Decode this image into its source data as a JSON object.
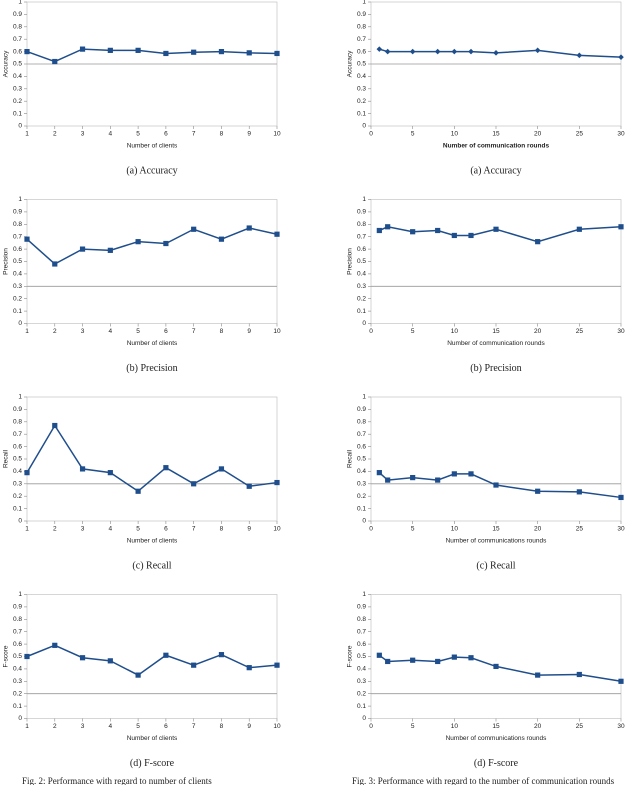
{
  "chart_data": [
    {
      "type": "line",
      "caption": "(a) Accuracy",
      "ylabel": "Accuracy",
      "xlabel": "Number of clients",
      "xlabel_bold": false,
      "marker": "square",
      "color": "#1f4e8c",
      "hline": 0.5,
      "x": [
        1,
        2,
        3,
        4,
        5,
        6,
        7,
        8,
        9,
        10
      ],
      "values": [
        0.6,
        0.52,
        0.62,
        0.61,
        0.61,
        0.585,
        0.595,
        0.6,
        0.59,
        0.585
      ],
      "xlim": [
        1,
        10
      ],
      "xticks": [
        1,
        2,
        3,
        4,
        5,
        6,
        7,
        8,
        9,
        10
      ],
      "ylim": [
        0,
        1
      ],
      "yticks": [
        0,
        0.1,
        0.2,
        0.3,
        0.4,
        0.5,
        0.6,
        0.7,
        0.8,
        0.9,
        1
      ]
    },
    {
      "type": "line",
      "caption": "(b) Precision",
      "ylabel": "Precision",
      "xlabel": "Number of clients",
      "xlabel_bold": false,
      "marker": "square",
      "color": "#1f4e8c",
      "hline": 0.3,
      "x": [
        1,
        2,
        3,
        4,
        5,
        6,
        7,
        8,
        9,
        10
      ],
      "values": [
        0.68,
        0.48,
        0.6,
        0.59,
        0.66,
        0.645,
        0.76,
        0.68,
        0.77,
        0.72
      ],
      "xlim": [
        1,
        10
      ],
      "xticks": [
        1,
        2,
        3,
        4,
        5,
        6,
        7,
        8,
        9,
        10
      ],
      "ylim": [
        0,
        1
      ],
      "yticks": [
        0,
        0.1,
        0.2,
        0.3,
        0.4,
        0.5,
        0.6,
        0.7,
        0.8,
        0.9,
        1
      ]
    },
    {
      "type": "line",
      "caption": "(c) Recall",
      "ylabel": "Recall",
      "xlabel": "Number of clients",
      "xlabel_bold": false,
      "marker": "square",
      "color": "#1f4e8c",
      "hline": 0.3,
      "x": [
        1,
        2,
        3,
        4,
        5,
        6,
        7,
        8,
        9,
        10
      ],
      "values": [
        0.39,
        0.77,
        0.42,
        0.39,
        0.24,
        0.43,
        0.3,
        0.42,
        0.28,
        0.31
      ],
      "xlim": [
        1,
        10
      ],
      "xticks": [
        1,
        2,
        3,
        4,
        5,
        6,
        7,
        8,
        9,
        10
      ],
      "ylim": [
        0,
        1
      ],
      "yticks": [
        0,
        0.1,
        0.2,
        0.3,
        0.4,
        0.5,
        0.6,
        0.7,
        0.8,
        0.9,
        1
      ]
    },
    {
      "type": "line",
      "caption": "(d) F-score",
      "ylabel": "F-score",
      "xlabel": "Number of clients",
      "xlabel_bold": false,
      "marker": "square",
      "color": "#1f4e8c",
      "hline": 0.2,
      "x": [
        1,
        2,
        3,
        4,
        5,
        6,
        7,
        8,
        9,
        10
      ],
      "values": [
        0.5,
        0.59,
        0.49,
        0.465,
        0.35,
        0.51,
        0.43,
        0.515,
        0.41,
        0.43
      ],
      "xlim": [
        1,
        10
      ],
      "xticks": [
        1,
        2,
        3,
        4,
        5,
        6,
        7,
        8,
        9,
        10
      ],
      "ylim": [
        0,
        1
      ],
      "yticks": [
        0,
        0.1,
        0.2,
        0.3,
        0.4,
        0.5,
        0.6,
        0.7,
        0.8,
        0.9,
        1
      ]
    },
    {
      "type": "line",
      "caption": "(a) Accuracy",
      "ylabel": "Accuracy",
      "xlabel": "Number of communication rounds",
      "xlabel_bold": true,
      "marker": "diamond",
      "color": "#1f4e8c",
      "hline": 0.5,
      "x": [
        1,
        2,
        5,
        8,
        10,
        12,
        15,
        20,
        25,
        30
      ],
      "values": [
        0.62,
        0.6,
        0.6,
        0.6,
        0.6,
        0.6,
        0.59,
        0.61,
        0.57,
        0.555
      ],
      "xlim": [
        0,
        30
      ],
      "xticks": [
        0,
        5,
        10,
        15,
        20,
        25,
        30
      ],
      "ylim": [
        0,
        1
      ],
      "yticks": [
        0,
        0.1,
        0.2,
        0.3,
        0.4,
        0.5,
        0.6,
        0.7,
        0.8,
        0.9,
        1
      ]
    },
    {
      "type": "line",
      "caption": "(b) Precision",
      "ylabel": "Precision",
      "xlabel": "Number of communication rounds",
      "xlabel_bold": false,
      "marker": "square",
      "color": "#1f4e8c",
      "hline": 0.3,
      "x": [
        1,
        2,
        5,
        8,
        10,
        12,
        15,
        20,
        25,
        30
      ],
      "values": [
        0.75,
        0.78,
        0.74,
        0.75,
        0.71,
        0.71,
        0.76,
        0.66,
        0.76,
        0.78
      ],
      "xlim": [
        0,
        30
      ],
      "xticks": [
        0,
        5,
        10,
        15,
        20,
        25,
        30
      ],
      "ylim": [
        0,
        1
      ],
      "yticks": [
        0,
        0.1,
        0.2,
        0.3,
        0.4,
        0.5,
        0.6,
        0.7,
        0.8,
        0.9,
        1
      ]
    },
    {
      "type": "line",
      "caption": "(c) Recall",
      "ylabel": "Recall",
      "xlabel": "Number of communications rounds",
      "xlabel_bold": false,
      "marker": "square",
      "color": "#1f4e8c",
      "hline": 0.3,
      "x": [
        1,
        2,
        5,
        8,
        10,
        12,
        15,
        20,
        25,
        30
      ],
      "values": [
        0.39,
        0.33,
        0.35,
        0.33,
        0.38,
        0.38,
        0.29,
        0.24,
        0.235,
        0.19
      ],
      "xlim": [
        0,
        30
      ],
      "xticks": [
        0,
        5,
        10,
        15,
        20,
        25,
        30
      ],
      "ylim": [
        0,
        1
      ],
      "yticks": [
        0,
        0.1,
        0.2,
        0.3,
        0.4,
        0.5,
        0.6,
        0.7,
        0.8,
        0.9,
        1
      ]
    },
    {
      "type": "line",
      "caption": "(d) F-score",
      "ylabel": "F-score",
      "xlabel": "Number of communications rounds",
      "xlabel_bold": false,
      "marker": "square",
      "color": "#1f4e8c",
      "hline": 0.2,
      "x": [
        1,
        2,
        5,
        8,
        10,
        12,
        15,
        20,
        25,
        30
      ],
      "values": [
        0.51,
        0.46,
        0.47,
        0.46,
        0.495,
        0.49,
        0.42,
        0.35,
        0.355,
        0.3
      ],
      "xlim": [
        0,
        30
      ],
      "xticks": [
        0,
        5,
        10,
        15,
        20,
        25,
        30
      ],
      "ylim": [
        0,
        1
      ],
      "yticks": [
        0,
        0.1,
        0.2,
        0.3,
        0.4,
        0.5,
        0.6,
        0.7,
        0.8,
        0.9,
        1
      ]
    }
  ],
  "figure_captions": [
    "Fig. 2: Performance with regard to number of clients",
    "Fig. 3: Performance with regard to the number of communication rounds"
  ]
}
